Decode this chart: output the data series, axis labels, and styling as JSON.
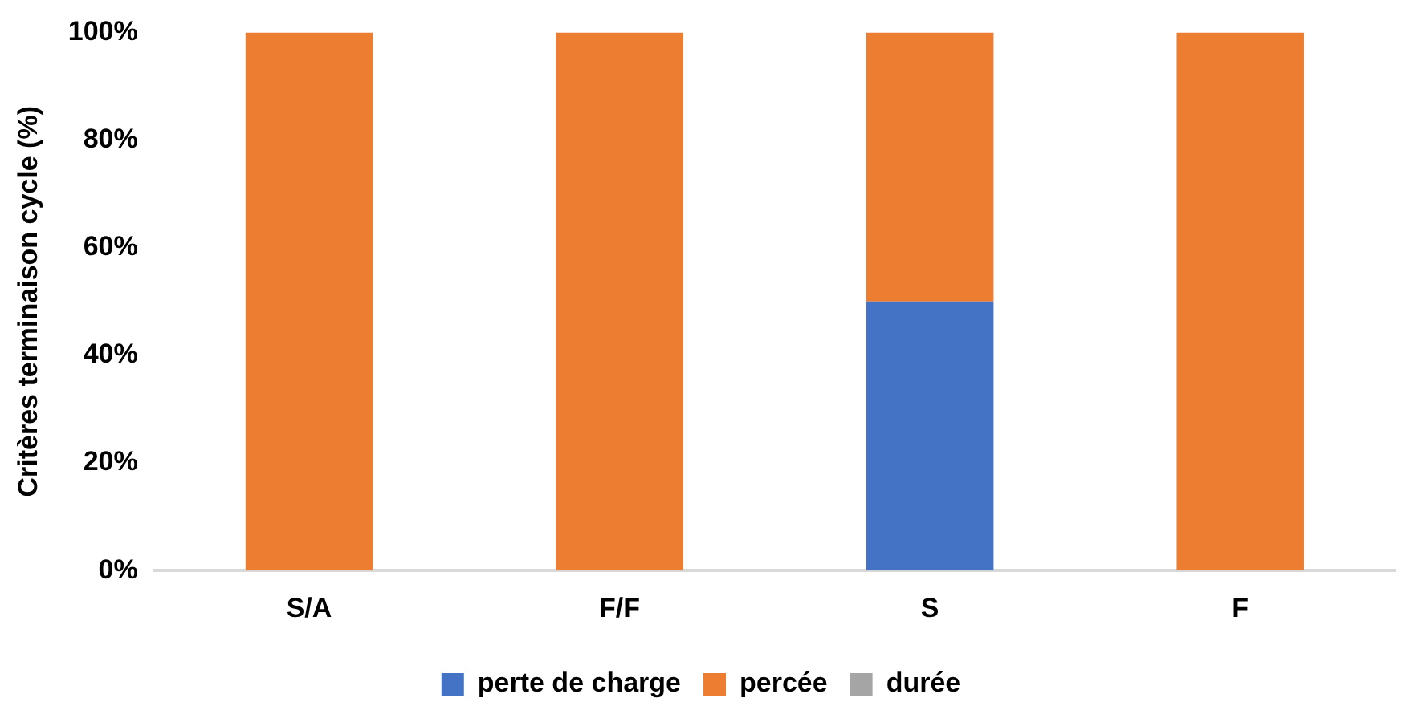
{
  "chart_data": {
    "type": "bar",
    "ylabel": "Critères terminaison cycle (%)",
    "categories": [
      "S/A",
      "F/F",
      "S",
      "F"
    ],
    "stacked": true,
    "series": [
      {
        "name": "perte de charge",
        "color": "#4472c4",
        "values": [
          0,
          0,
          50,
          0
        ]
      },
      {
        "name": "percée",
        "color": "#ed7d31",
        "values": [
          100,
          100,
          50,
          100
        ]
      },
      {
        "name": "durée",
        "color": "#a5a5a5",
        "values": [
          0,
          0,
          0,
          0
        ]
      }
    ],
    "ylim": [
      0,
      100
    ],
    "yticks": [
      {
        "value": 0,
        "label": "0%"
      },
      {
        "value": 20,
        "label": "20%"
      },
      {
        "value": 40,
        "label": "40%"
      },
      {
        "value": 60,
        "label": "60%"
      },
      {
        "value": 80,
        "label": "80%"
      },
      {
        "value": 100,
        "label": "100%"
      }
    ],
    "grid": false,
    "legend": "bottom"
  }
}
